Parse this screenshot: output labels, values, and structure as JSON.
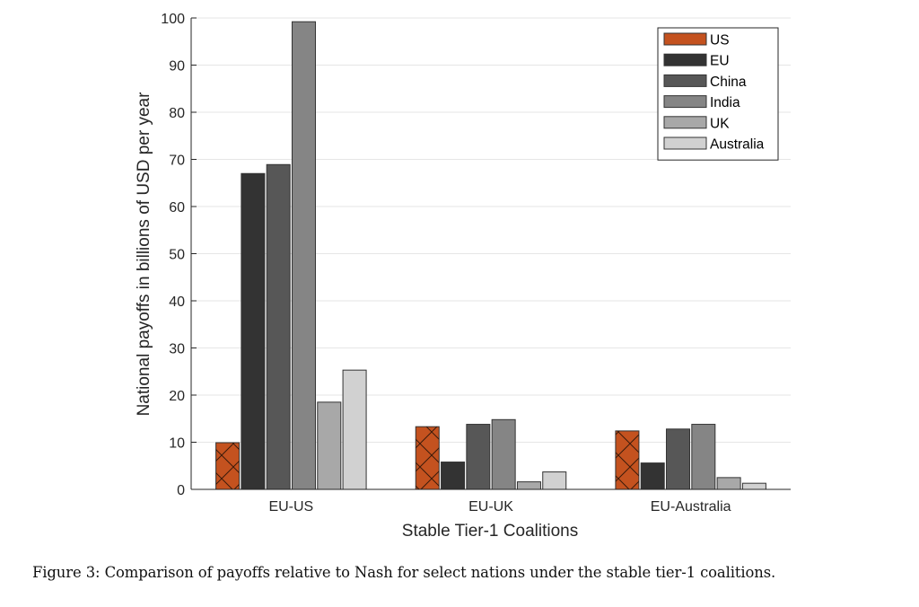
{
  "chart_data": {
    "type": "bar",
    "title": "",
    "xlabel": "Stable Tier-1 Coalitions",
    "ylabel": "National payoffs in billions of USD per year",
    "categories": [
      "EU-US",
      "EU-UK",
      "EU-Australia"
    ],
    "ylim": [
      0,
      100
    ],
    "yticks": [
      0,
      10,
      20,
      30,
      40,
      50,
      60,
      70,
      80,
      90,
      100
    ],
    "grid": "horizontal",
    "legend_position": "top-right",
    "series": [
      {
        "name": "US",
        "color": "#C4521F",
        "hatch": "cross",
        "values": [
          9.9,
          13.3,
          12.4
        ]
      },
      {
        "name": "EU",
        "color": "#333333",
        "values": [
          67.0,
          5.8,
          5.6
        ]
      },
      {
        "name": "China",
        "color": "#575757",
        "values": [
          68.9,
          13.8,
          12.8
        ]
      },
      {
        "name": "India",
        "color": "#858585",
        "values": [
          99.2,
          14.8,
          13.8
        ]
      },
      {
        "name": "UK",
        "color": "#A8A8A8",
        "values": [
          18.5,
          1.6,
          2.5
        ]
      },
      {
        "name": "Australia",
        "color": "#D1D1D1",
        "values": [
          25.3,
          3.7,
          1.3
        ]
      }
    ]
  },
  "caption": "Figure 3: Comparison of payoffs relative to Nash for select nations under the stable tier-1 coalitions."
}
